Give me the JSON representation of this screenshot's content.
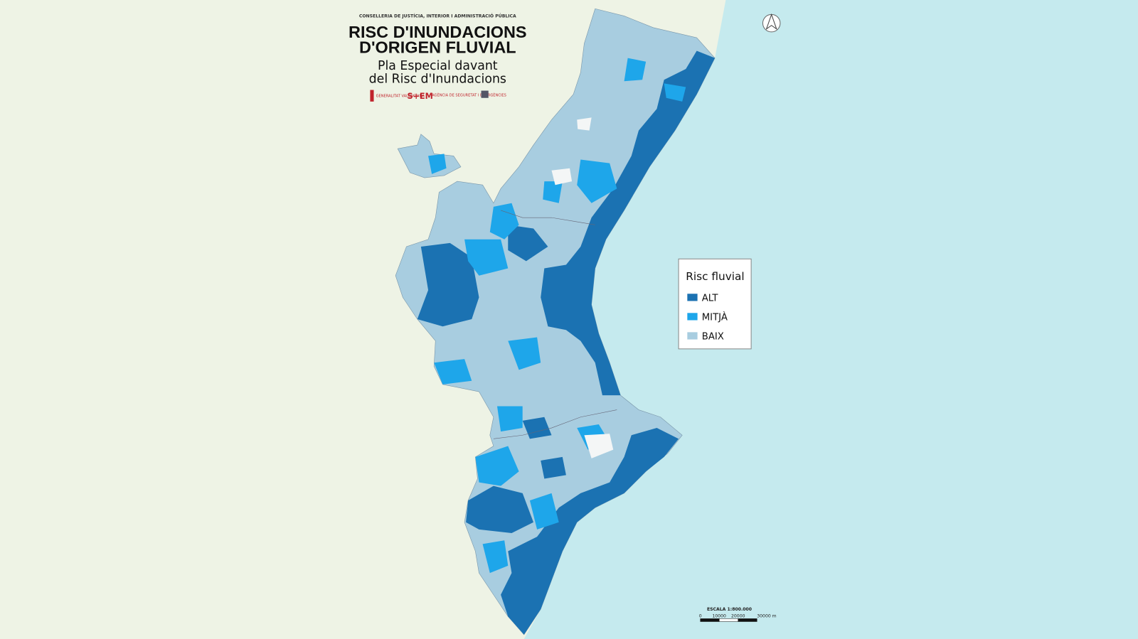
{
  "header": {
    "department": "CONSELLERIA DE JUSTÍCIA, INTERIOR I ADMINISTRACIÓ PÚBLICA",
    "title_lines": [
      "RISC D'INUNDACIONS",
      "D'ORIGEN FLUVIAL"
    ],
    "subtitle_lines": [
      "Pla Especial davant",
      "del Risc d'Inundacions"
    ],
    "logos": [
      "GENERALITAT VALENCIANA",
      "S+EM",
      "AGÈNCIA DE SEGURETAT I EMERGÈNCIES"
    ]
  },
  "legend": {
    "title": "Risc fluvial",
    "items": [
      {
        "label": "ALT",
        "color": "#1b72b2"
      },
      {
        "label": "MITJÀ",
        "color": "#1ea6ea"
      },
      {
        "label": "BAIX",
        "color": "#a8cde0"
      }
    ]
  },
  "scale": {
    "title": "ESCALA  1:800.000",
    "labels": [
      "0",
      "10000",
      "20000",
      "30000 m"
    ]
  }
}
